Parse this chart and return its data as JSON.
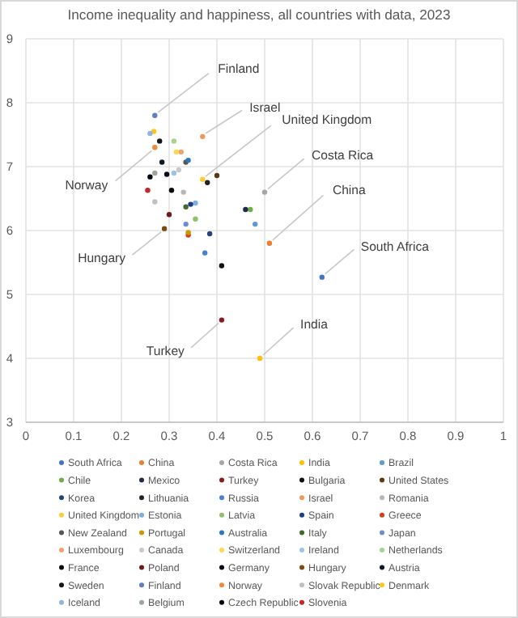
{
  "chart_data": {
    "type": "scatter",
    "title": "Income inequality and happiness, all countries with data, 2023",
    "xlim": [
      0,
      1
    ],
    "xticks": [
      0,
      0.1,
      0.2,
      0.3,
      0.4,
      0.5,
      0.6,
      0.7,
      0.8,
      0.9,
      1
    ],
    "ylim": [
      3,
      9
    ],
    "yticks": [
      3,
      4,
      5,
      6,
      7,
      8,
      9
    ],
    "grid": true,
    "legend": "bottom",
    "marker": "circle",
    "annotations": [
      {
        "text": "Finland",
        "x": 0.27,
        "y": 7.8
      },
      {
        "text": "Israel",
        "x": 0.37,
        "y": 7.47
      },
      {
        "text": "United Kingdom",
        "x": 0.37,
        "y": 6.8
      },
      {
        "text": "Costa Rica",
        "x": 0.5,
        "y": 6.6
      },
      {
        "text": "China",
        "x": 0.51,
        "y": 5.8
      },
      {
        "text": "South Africa",
        "x": 0.62,
        "y": 5.27
      },
      {
        "text": "India",
        "x": 0.49,
        "y": 4.0
      },
      {
        "text": "Turkey",
        "x": 0.41,
        "y": 4.6
      },
      {
        "text": "Hungary",
        "x": 0.29,
        "y": 6.03
      },
      {
        "text": "Norway",
        "x": 0.27,
        "y": 7.3
      }
    ],
    "series": [
      {
        "name": "South Africa",
        "color": "#4472c4",
        "x": [
          0.62
        ],
        "values": [
          5.27
        ]
      },
      {
        "name": "China",
        "color": "#ed7d31",
        "x": [
          0.51
        ],
        "values": [
          5.8
        ]
      },
      {
        "name": "Costa Rica",
        "color": "#a5a5a5",
        "x": [
          0.5
        ],
        "values": [
          6.6
        ]
      },
      {
        "name": "India",
        "color": "#ffc000",
        "x": [
          0.49
        ],
        "values": [
          4.0
        ]
      },
      {
        "name": "Brazil",
        "color": "#5b9bd5",
        "x": [
          0.48
        ],
        "values": [
          6.1
        ]
      },
      {
        "name": "Chile",
        "color": "#70ad47",
        "x": [
          0.47
        ],
        "values": [
          6.33
        ]
      },
      {
        "name": "Mexico",
        "color": "#1f2d4a",
        "x": [
          0.46
        ],
        "values": [
          6.33
        ]
      },
      {
        "name": "Turkey",
        "color": "#8b1a1a",
        "x": [
          0.41
        ],
        "values": [
          4.6
        ]
      },
      {
        "name": "Bulgaria",
        "color": "#111111",
        "x": [
          0.41
        ],
        "values": [
          5.45
        ]
      },
      {
        "name": "United States",
        "color": "#5a3a10",
        "x": [
          0.4
        ],
        "values": [
          6.86
        ]
      },
      {
        "name": "Korea",
        "color": "#264478",
        "x": [
          0.385
        ],
        "values": [
          5.95
        ]
      },
      {
        "name": "Lithuania",
        "color": "#222222",
        "x": [
          0.38
        ],
        "values": [
          6.75
        ]
      },
      {
        "name": "Russia",
        "color": "#4a7fd0",
        "x": [
          0.375
        ],
        "values": [
          5.65
        ]
      },
      {
        "name": "Israel",
        "color": "#f1975a",
        "x": [
          0.37
        ],
        "values": [
          7.47
        ]
      },
      {
        "name": "Romania",
        "color": "#b7b7b7",
        "x": [
          0.33
        ],
        "values": [
          6.6
        ]
      },
      {
        "name": "United Kingdom",
        "color": "#ffcd33",
        "x": [
          0.37
        ],
        "values": [
          6.8
        ]
      },
      {
        "name": "Estonia",
        "color": "#7cafdd",
        "x": [
          0.355
        ],
        "values": [
          6.43
        ]
      },
      {
        "name": "Latvia",
        "color": "#8cc168",
        "x": [
          0.355
        ],
        "values": [
          6.18
        ]
      },
      {
        "name": "Spain",
        "color": "#1f3c80",
        "x": [
          0.345
        ],
        "values": [
          6.41
        ]
      },
      {
        "name": "Greece",
        "color": "#d2401a",
        "x": [
          0.34
        ],
        "values": [
          5.93
        ]
      },
      {
        "name": "New Zealand",
        "color": "#555555",
        "x": [
          0.335
        ],
        "values": [
          7.07
        ]
      },
      {
        "name": "Portugal",
        "color": "#cc9a00",
        "x": [
          0.34
        ],
        "values": [
          5.97
        ]
      },
      {
        "name": "Australia",
        "color": "#2f75c0",
        "x": [
          0.34
        ],
        "values": [
          7.1
        ]
      },
      {
        "name": "Italy",
        "color": "#43682b",
        "x": [
          0.335
        ],
        "values": [
          6.37
        ]
      },
      {
        "name": "Japan",
        "color": "#698ed0",
        "x": [
          0.335
        ],
        "values": [
          6.1
        ]
      },
      {
        "name": "Luxembourg",
        "color": "#f4a06a",
        "x": [
          0.325
        ],
        "values": [
          7.23
        ]
      },
      {
        "name": "Canada",
        "color": "#c9c9c9",
        "x": [
          0.32
        ],
        "values": [
          6.95
        ]
      },
      {
        "name": "Switzerland",
        "color": "#ffd84d",
        "x": [
          0.315
        ],
        "values": [
          7.23
        ]
      },
      {
        "name": "Ireland",
        "color": "#9cc3e6",
        "x": [
          0.31
        ],
        "values": [
          6.9
        ]
      },
      {
        "name": "Netherlands",
        "color": "#a9d18e",
        "x": [
          0.31
        ],
        "values": [
          7.4
        ]
      },
      {
        "name": "France",
        "color": "#0d0d0d",
        "x": [
          0.305
        ],
        "values": [
          6.63
        ]
      },
      {
        "name": "Poland",
        "color": "#6b1d1d",
        "x": [
          0.3
        ],
        "values": [
          6.25
        ]
      },
      {
        "name": "Germany",
        "color": "#0a0a1a",
        "x": [
          0.295
        ],
        "values": [
          6.88
        ]
      },
      {
        "name": "Hungary",
        "color": "#7a4a10",
        "x": [
          0.29
        ],
        "values": [
          6.03
        ]
      },
      {
        "name": "Austria",
        "color": "#101828",
        "x": [
          0.285
        ],
        "values": [
          7.07
        ]
      },
      {
        "name": "Sweden",
        "color": "#141414",
        "x": [
          0.28
        ],
        "values": [
          7.4
        ]
      },
      {
        "name": "Finland",
        "color": "#5b7fc0",
        "x": [
          0.27
        ],
        "values": [
          7.8
        ]
      },
      {
        "name": "Norway",
        "color": "#f08a3a",
        "x": [
          0.27
        ],
        "values": [
          7.3
        ]
      },
      {
        "name": "Slovak Republic",
        "color": "#c0c0c0",
        "x": [
          0.27
        ],
        "values": [
          6.45
        ]
      },
      {
        "name": "Denmark",
        "color": "#ffc61a",
        "x": [
          0.268
        ],
        "values": [
          7.55
        ]
      },
      {
        "name": "Iceland",
        "color": "#8fb4e0",
        "x": [
          0.26
        ],
        "values": [
          7.52
        ]
      },
      {
        "name": "Belgium",
        "color": "#9aa89a",
        "x": [
          0.27
        ],
        "values": [
          6.9
        ]
      },
      {
        "name": "Czech Republic",
        "color": "#050510",
        "x": [
          0.26
        ],
        "values": [
          6.84
        ]
      },
      {
        "name": "Slovenia",
        "color": "#c0282a",
        "x": [
          0.255
        ],
        "values": [
          6.63
        ]
      }
    ]
  }
}
